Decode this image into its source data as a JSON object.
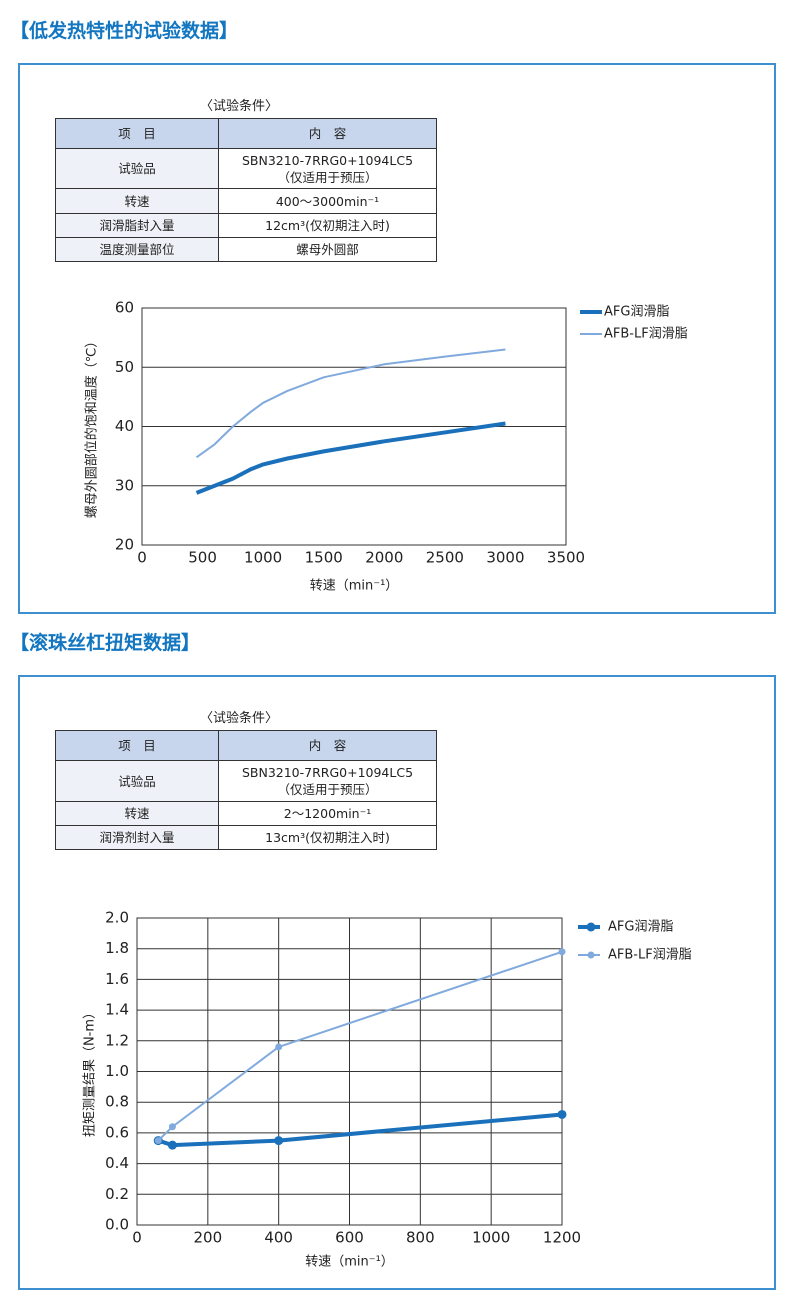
{
  "sections": [
    {
      "title": "【低发热特性的试验数据】",
      "table": {
        "caption": "〈试验条件〉",
        "header": [
          "项　目",
          "内　容"
        ],
        "rows": [
          [
            "试验品",
            "SBN3210-7RRG0+1094LC5\n（仅适用于预压）"
          ],
          [
            "转速",
            "400～3000min⁻¹"
          ],
          [
            "润滑脂封入量",
            "12cm³(仅初期注入时)"
          ],
          [
            "温度测量部位",
            "螺母外圆部"
          ]
        ]
      }
    },
    {
      "title": "【滚珠丝杠扭矩数据】",
      "table": {
        "caption": "〈试验条件〉",
        "header": [
          "项　目",
          "内　容"
        ],
        "rows": [
          [
            "试验品",
            "SBN3210-7RRG0+1094LC5\n（仅适用于预压）"
          ],
          [
            "转速",
            "2～1200min⁻¹"
          ],
          [
            "润滑剂封入量",
            "13cm³(仅初期注入时)"
          ]
        ]
      }
    }
  ],
  "chart_data": [
    {
      "type": "line",
      "x_label": "转速（min⁻¹）",
      "y_label": "螺母外圆部位的饱和温度（℃）",
      "xlim": [
        0,
        3500
      ],
      "xticks": [
        0,
        500,
        1000,
        1500,
        2000,
        2500,
        3000,
        3500
      ],
      "ylim": [
        20,
        60
      ],
      "yticks": [
        20,
        30,
        40,
        50,
        60
      ],
      "xgrid": false,
      "ygrid": true,
      "markers": false,
      "series": [
        {
          "name": "AFG润滑脂",
          "color": "#1a70ba",
          "width": 4,
          "x": [
            450,
            600,
            750,
            900,
            1000,
            1200,
            1500,
            2000,
            2500,
            3000
          ],
          "values": [
            28.8,
            30,
            31.2,
            32.8,
            33.6,
            34.6,
            35.8,
            37.5,
            39,
            40.5
          ]
        },
        {
          "name": "AFB-LF润滑脂",
          "color": "#80aadd",
          "width": 2,
          "x": [
            450,
            600,
            750,
            900,
            1000,
            1200,
            1500,
            2000,
            2500,
            3000
          ],
          "values": [
            34.8,
            37,
            40,
            42.5,
            44,
            46,
            48.3,
            50.5,
            51.8,
            53
          ]
        }
      ]
    },
    {
      "type": "line",
      "x_label": "转速（min⁻¹）",
      "y_label": "扭矩测量结果（N-m）",
      "xlim": [
        0,
        1200
      ],
      "xticks": [
        0,
        200,
        400,
        600,
        800,
        1000,
        1200
      ],
      "ylim": [
        0,
        2
      ],
      "yticks": [
        {
          "value": 0,
          "label": "0.0"
        },
        0.2,
        0.4,
        0.6,
        0.8,
        {
          "value": 1,
          "label": "1.0"
        },
        1.2,
        1.4,
        1.6,
        1.8,
        {
          "value": 2,
          "label": "2.0"
        }
      ],
      "xgrid": true,
      "ygrid": true,
      "markers": true,
      "series": [
        {
          "name": "AFG润滑脂",
          "color": "#1a70ba",
          "width": 4,
          "x": [
            60,
            100,
            400,
            1200
          ],
          "values": [
            0.55,
            0.52,
            0.55,
            0.72
          ]
        },
        {
          "name": "AFB-LF润滑脂",
          "color": "#80aadd",
          "width": 2,
          "x": [
            60,
            100,
            400,
            1200
          ],
          "values": [
            0.55,
            0.64,
            1.16,
            1.78
          ]
        }
      ]
    }
  ]
}
